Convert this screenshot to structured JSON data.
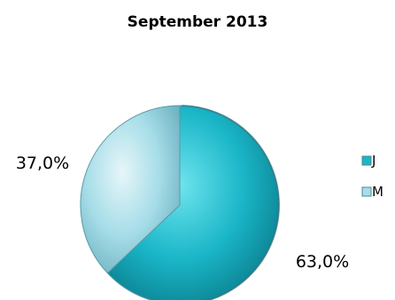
{
  "chart_data": {
    "type": "pie",
    "title": "September 2013",
    "slices": [
      {
        "name": "J",
        "value": 63.0,
        "label": "63,0%",
        "color": "#1ab6c8"
      },
      {
        "name": "M",
        "value": 37.0,
        "label": "37,0%",
        "color": "#a6dde8"
      }
    ],
    "start_angle_deg": 0,
    "direction": "clockwise",
    "style": "3d-shaded",
    "legend": {
      "position": "right",
      "entries": [
        "J",
        "M"
      ]
    }
  }
}
